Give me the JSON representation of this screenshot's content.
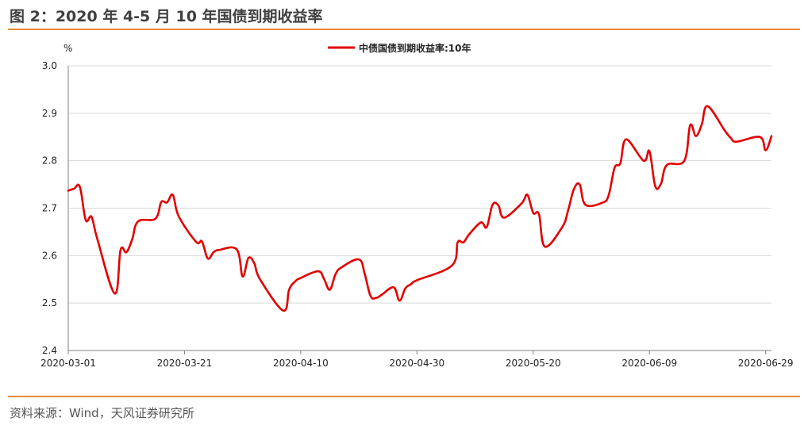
{
  "header": {
    "title": "图 2：2020 年 4-5 月 10 年国债到期收益率"
  },
  "footer": {
    "source": "资料来源：Wind，天风证券研究所"
  },
  "colors": {
    "accent_rule": "#e8893a",
    "series_line": "#e30000",
    "grid": "#d9d9d9",
    "axis": "#7f7f7f"
  },
  "chart_data": {
    "type": "line",
    "title": "",
    "ylabel": "%",
    "xlabel": "",
    "ylim": [
      2.4,
      3.0
    ],
    "yticks": [
      "2.4",
      "2.5",
      "2.6",
      "2.7",
      "2.8",
      "2.9",
      "3.0"
    ],
    "xticks": [
      "2020-03-01",
      "2020-03-21",
      "2020-04-10",
      "2020-04-30",
      "2020-05-20",
      "2020-06-09",
      "2020-06-29"
    ],
    "grid": true,
    "legend_position": "top",
    "series": [
      {
        "name": "中债国债到期收益率:10年",
        "x": [
          "2020-03-01",
          "2020-03-02",
          "2020-03-03",
          "2020-03-04",
          "2020-03-05",
          "2020-03-06",
          "2020-03-09",
          "2020-03-10",
          "2020-03-11",
          "2020-03-12",
          "2020-03-13",
          "2020-03-16",
          "2020-03-17",
          "2020-03-18",
          "2020-03-19",
          "2020-03-20",
          "2020-03-23",
          "2020-03-24",
          "2020-03-25",
          "2020-03-26",
          "2020-03-27",
          "2020-03-30",
          "2020-03-31",
          "2020-04-01",
          "2020-04-02",
          "2020-04-03",
          "2020-04-07",
          "2020-04-08",
          "2020-04-09",
          "2020-04-10",
          "2020-04-13",
          "2020-04-14",
          "2020-04-15",
          "2020-04-16",
          "2020-04-17",
          "2020-04-20",
          "2020-04-21",
          "2020-04-22",
          "2020-04-23",
          "2020-04-24",
          "2020-04-26",
          "2020-04-27",
          "2020-04-28",
          "2020-04-29",
          "2020-04-30",
          "2020-05-06",
          "2020-05-07",
          "2020-05-08",
          "2020-05-09",
          "2020-05-11",
          "2020-05-12",
          "2020-05-13",
          "2020-05-14",
          "2020-05-15",
          "2020-05-18",
          "2020-05-19",
          "2020-05-20",
          "2020-05-21",
          "2020-05-22",
          "2020-05-25",
          "2020-05-26",
          "2020-05-27",
          "2020-05-28",
          "2020-05-29",
          "2020-06-01",
          "2020-06-02",
          "2020-06-03",
          "2020-06-04",
          "2020-06-05",
          "2020-06-08",
          "2020-06-09",
          "2020-06-10",
          "2020-06-11",
          "2020-06-12",
          "2020-06-15",
          "2020-06-16",
          "2020-06-17",
          "2020-06-18",
          "2020-06-19",
          "2020-06-22",
          "2020-06-23",
          "2020-06-24",
          "2020-06-28",
          "2020-06-29",
          "2020-06-30"
        ],
        "values": [
          2.737,
          2.741,
          2.745,
          2.675,
          2.682,
          2.635,
          2.52,
          2.612,
          2.607,
          2.634,
          2.672,
          2.678,
          2.713,
          2.712,
          2.728,
          2.683,
          2.629,
          2.63,
          2.594,
          2.607,
          2.612,
          2.613,
          2.556,
          2.595,
          2.584,
          2.55,
          2.484,
          2.528,
          2.545,
          2.553,
          2.567,
          2.551,
          2.528,
          2.561,
          2.575,
          2.592,
          2.562,
          2.515,
          2.511,
          2.518,
          2.533,
          2.505,
          2.531,
          2.54,
          2.548,
          2.579,
          2.628,
          2.628,
          2.645,
          2.67,
          2.66,
          2.707,
          2.706,
          2.68,
          2.71,
          2.728,
          2.69,
          2.687,
          2.619,
          2.66,
          2.695,
          2.74,
          2.75,
          2.707,
          2.712,
          2.728,
          2.785,
          2.795,
          2.845,
          2.8,
          2.82,
          2.746,
          2.752,
          2.791,
          2.8,
          2.875,
          2.852,
          2.876,
          2.915,
          2.863,
          2.848,
          2.84,
          2.85,
          2.822,
          2.852
        ]
      }
    ]
  }
}
